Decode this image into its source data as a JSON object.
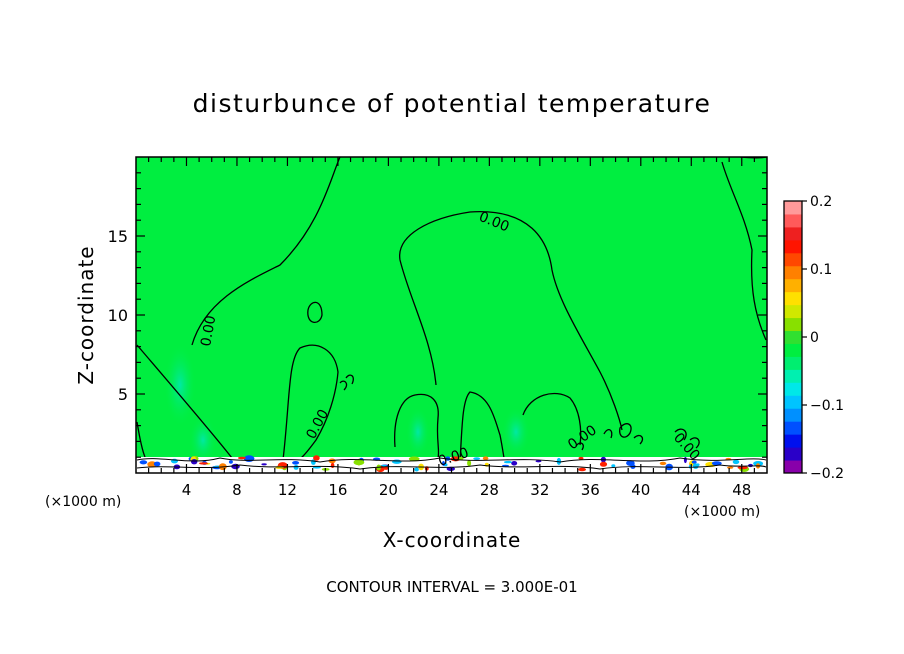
{
  "chart_data": {
    "type": "heatmap",
    "title": "disturbunce of potential temperature",
    "xlabel": "X-coordinate",
    "ylabel": "Z-coordinate",
    "x_unit_left": "(×1000 m)",
    "x_unit_right": "(×1000 m)",
    "xlim": [
      0,
      50
    ],
    "ylim": [
      0,
      20
    ],
    "x_ticks": [
      4,
      8,
      12,
      16,
      20,
      24,
      28,
      32,
      36,
      40,
      44,
      48
    ],
    "y_ticks": [
      5,
      10,
      15
    ],
    "footer": "CONTOUR INTERVAL = 3.000E-01",
    "contour_labels": [
      "0.00",
      "0.00",
      "0.00",
      "0.00",
      "0.00",
      "0.00"
    ],
    "colorbar": {
      "range": [
        -0.2,
        0.2
      ],
      "tick_values": [
        0.2,
        0.1,
        0,
        -0.1,
        -0.2
      ],
      "tick_labels": [
        "0.2",
        "0.1",
        "0",
        "-0.1",
        "-0.2"
      ],
      "colors": [
        "#8800aa",
        "#2a00c8",
        "#0010ee",
        "#0050ff",
        "#0090ff",
        "#00c4ff",
        "#00e8e8",
        "#00f0b0",
        "#00ee70",
        "#00ee40",
        "#30e030",
        "#88e000",
        "#d0e800",
        "#ffe000",
        "#ffb000",
        "#ff8000",
        "#ff4800",
        "#ff1400",
        "#ee2020",
        "#ff5a5a",
        "#ff9a9a"
      ]
    },
    "background_color": "#00ee40"
  }
}
